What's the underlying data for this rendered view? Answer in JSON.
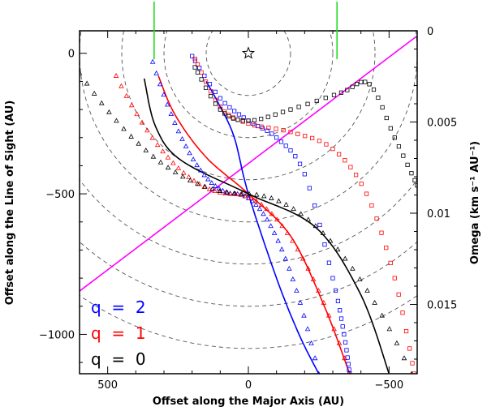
{
  "chart_data": {
    "type": "line",
    "xlabel": "Offset along the Major Axis (AU)",
    "ylabel": "Offset along the Line of Sight (AU)",
    "y2label": "Omega (km s⁻¹ AU⁻¹)",
    "xlim": [
      600,
      -600
    ],
    "ylim": [
      -1140,
      80
    ],
    "y2lim": [
      0,
      0.0188
    ],
    "xticks": [
      500,
      0,
      -500
    ],
    "xtick_labels": [
      "500",
      "0",
      "−500"
    ],
    "yticks": [
      0,
      -500,
      -1000
    ],
    "ytick_labels": [
      "0",
      "−500",
      "−1000"
    ],
    "y2ticks": [
      0,
      0.005,
      0.01,
      0.015
    ],
    "y2tick_labels": [
      "0",
      "0.005",
      "0.01",
      "0.015"
    ],
    "colors": {
      "q2": "#0000ff",
      "q1": "#ff0000",
      "q0": "#000000",
      "slit": "#ff00ff",
      "green": "#22dd22",
      "circle": "#555555"
    },
    "legend": [
      {
        "label": "q  =  2",
        "color": "#0000ff"
      },
      {
        "label": "q  =  1",
        "color": "#ff0000"
      },
      {
        "label": "q  =  0",
        "color": "#000000"
      }
    ],
    "star": {
      "x": 0,
      "y": 0
    },
    "green_markers_x": [
      335,
      -315
    ],
    "magenta_line": [
      [
        600,
        -846
      ],
      [
        -600,
        62
      ]
    ],
    "circle_radii": [
      150,
      300,
      450,
      600,
      750,
      900,
      1050
    ],
    "solid_curves": [
      {
        "name": "q=2",
        "color": "#0000ff",
        "points": [
          [
            -250,
            -1140
          ],
          [
            -180,
            -1000
          ],
          [
            -100,
            -800
          ],
          [
            0,
            -500
          ],
          [
            50,
            -300
          ],
          [
            100,
            -190
          ],
          [
            150,
            -100
          ]
        ]
      },
      {
        "name": "q=1",
        "color": "#ff0000",
        "points": [
          [
            -360,
            -1140
          ],
          [
            -270,
            -900
          ],
          [
            -150,
            -650
          ],
          [
            0,
            -500
          ],
          [
            150,
            -370
          ],
          [
            260,
            -220
          ],
          [
            320,
            -80
          ]
        ]
      },
      {
        "name": "q=0",
        "color": "#000000",
        "points": [
          [
            -500,
            -1140
          ],
          [
            -400,
            -860
          ],
          [
            -240,
            -620
          ],
          [
            0,
            -500
          ],
          [
            240,
            -380
          ],
          [
            330,
            -260
          ],
          [
            370,
            -90
          ]
        ]
      }
    ],
    "triangle_series": [
      {
        "name": "q=2",
        "color": "#0000ff",
        "x_range": [
          340,
          -250
        ],
        "y_range": [
          -30,
          -1140
        ]
      },
      {
        "name": "q=1",
        "color": "#ff0000",
        "x_range": [
          470,
          -360
        ],
        "y_range": [
          -80,
          -1140
        ]
      },
      {
        "name": "q=0",
        "color": "#000000",
        "x_range": [
          600,
          -580
        ],
        "y_range": [
          -70,
          -1140
        ]
      }
    ],
    "square_series": [
      {
        "name": "q=2",
        "color": "#0000ff",
        "points": [
          [
            200,
            -10
          ],
          [
            100,
            -160
          ],
          [
            0,
            -240
          ],
          [
            -100,
            -300
          ],
          [
            -200,
            -430
          ],
          [
            -300,
            -800
          ],
          [
            -340,
            -1000
          ],
          [
            -360,
            -1140
          ]
        ]
      },
      {
        "name": "q=1",
        "color": "#ff0000",
        "points": [
          [
            190,
            -20
          ],
          [
            100,
            -190
          ],
          [
            0,
            -250
          ],
          [
            -150,
            -280
          ],
          [
            -300,
            -340
          ],
          [
            -420,
            -500
          ],
          [
            -520,
            -800
          ],
          [
            -590,
            -1140
          ]
        ]
      },
      {
        "name": "q=0",
        "color": "#000000",
        "points": [
          [
            190,
            -50
          ],
          [
            100,
            -200
          ],
          [
            0,
            -240
          ],
          [
            -150,
            -200
          ],
          [
            -330,
            -140
          ],
          [
            -430,
            -110
          ],
          [
            -520,
            -300
          ],
          [
            -600,
            -470
          ]
        ]
      }
    ]
  }
}
